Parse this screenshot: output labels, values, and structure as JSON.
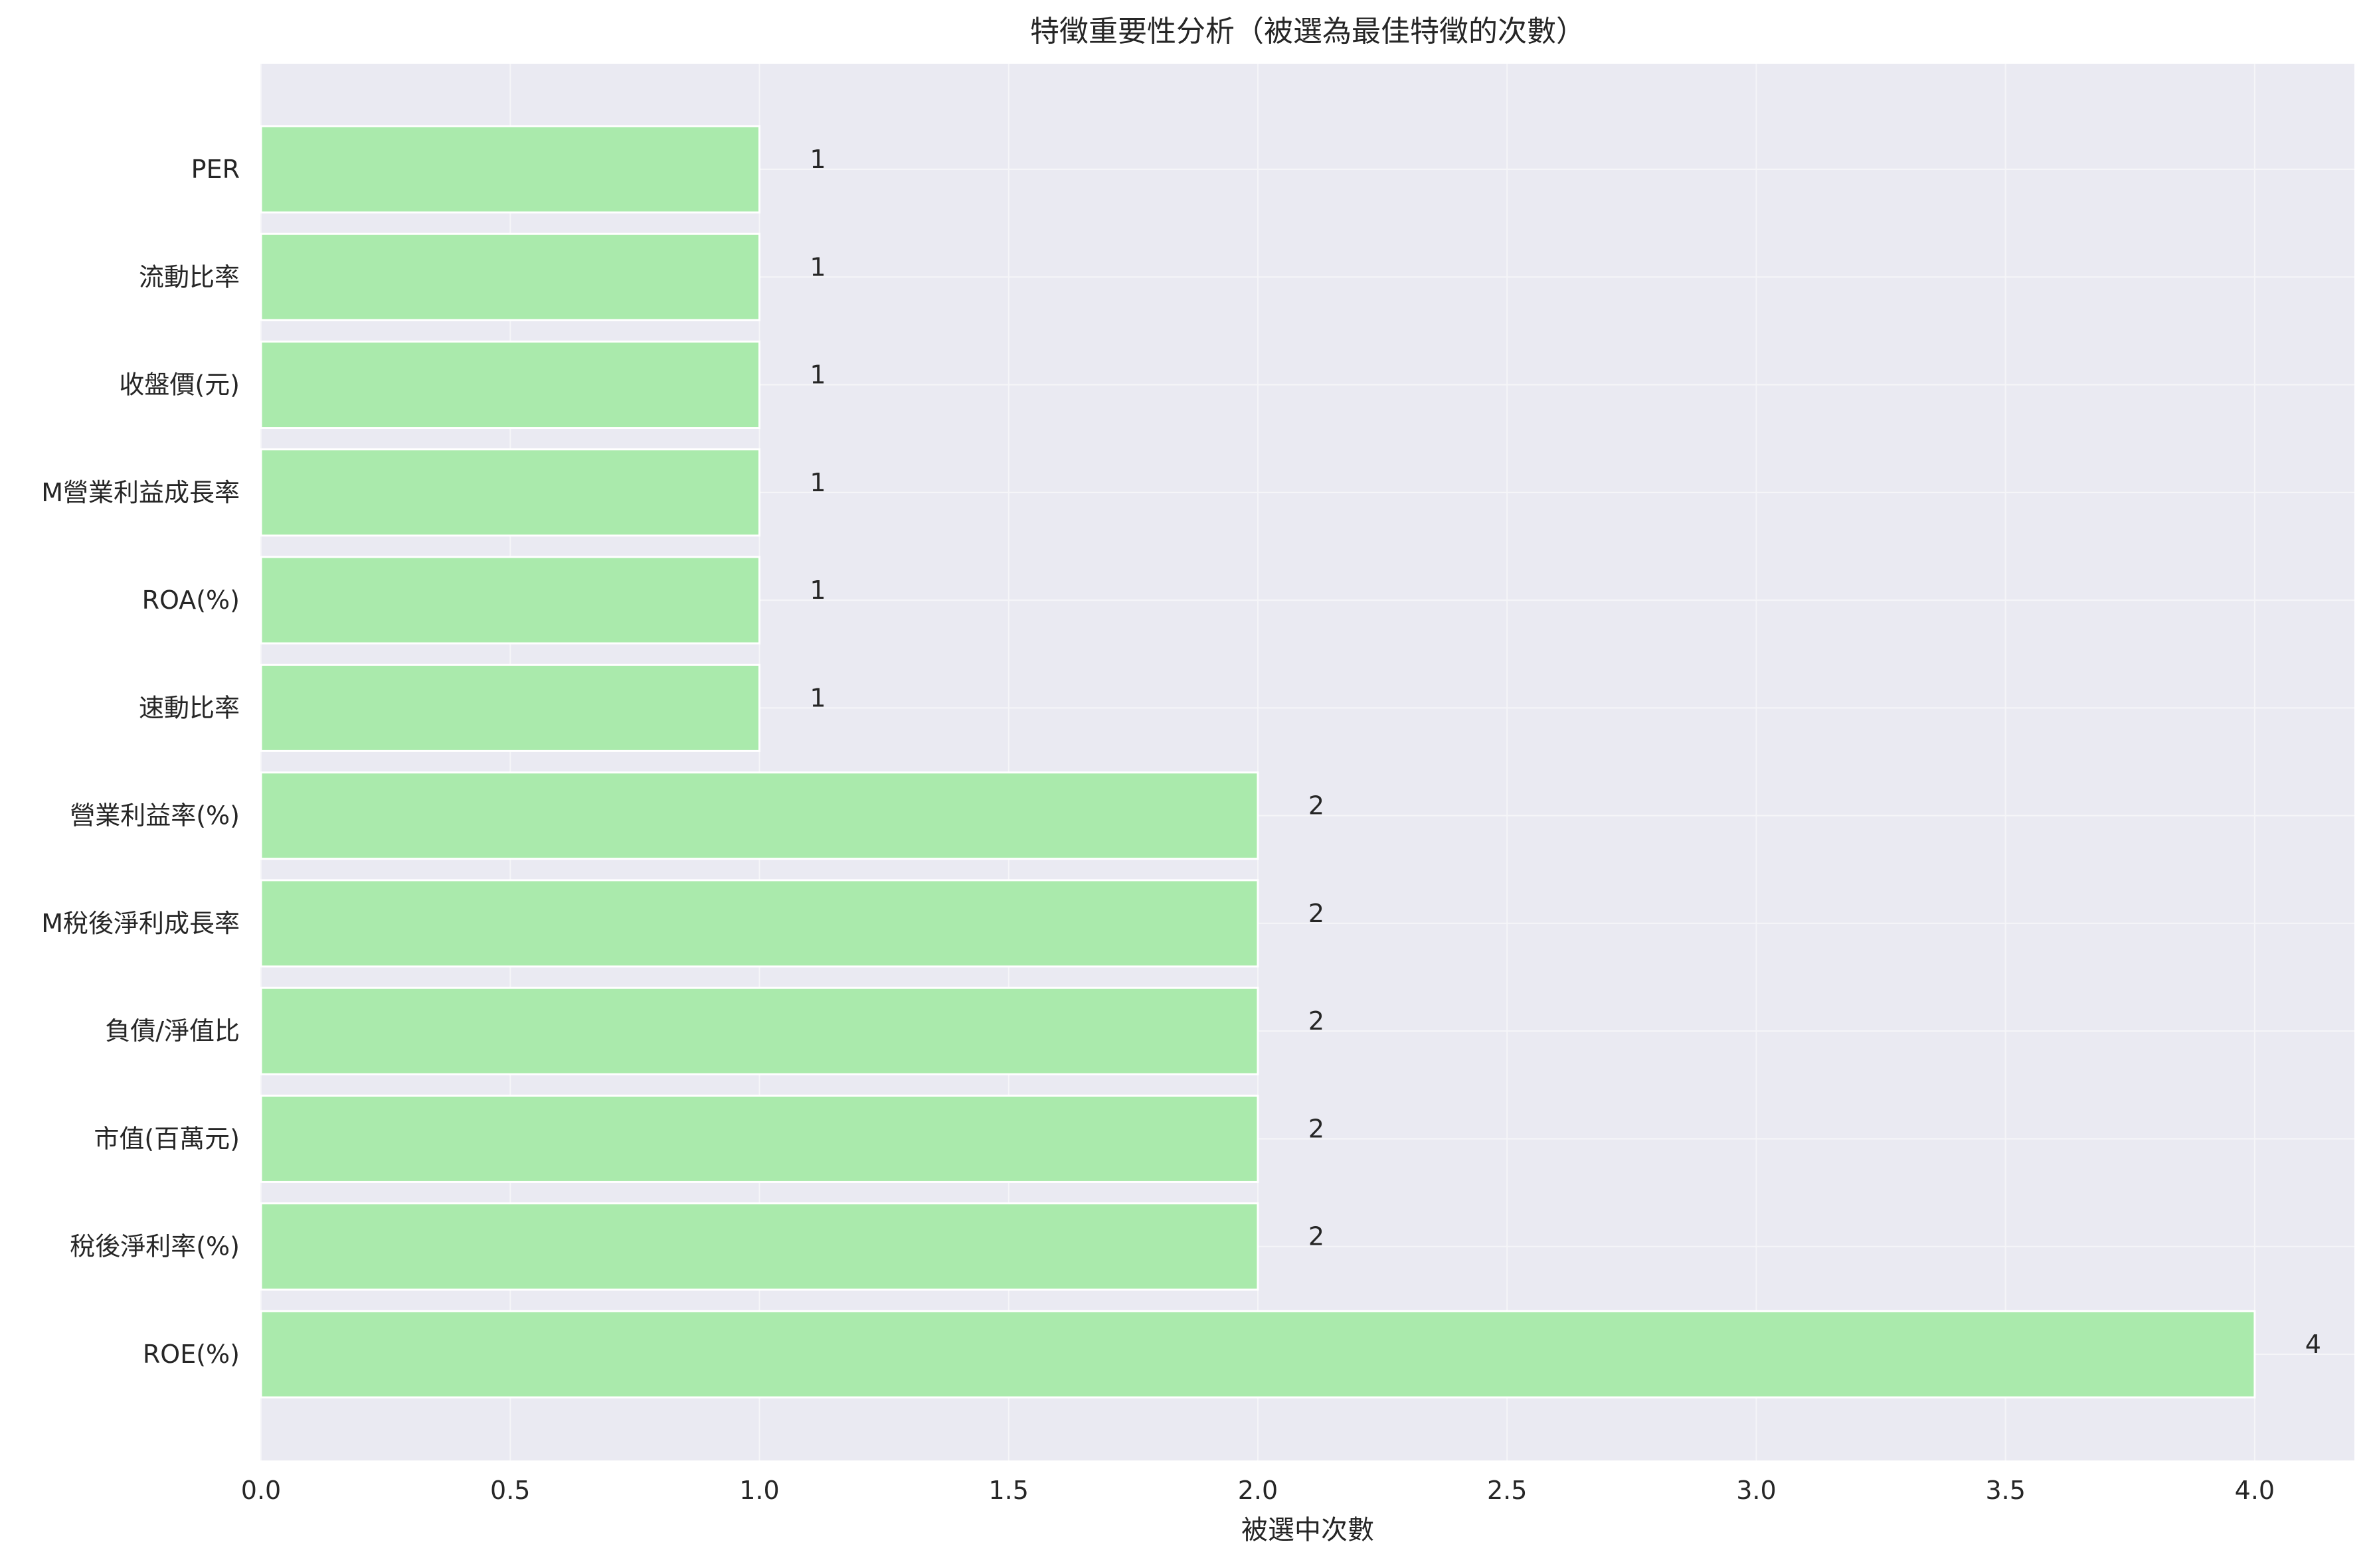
{
  "chart_data": {
    "type": "bar",
    "orientation": "horizontal",
    "title": "特徵重要性分析（被選為最佳特徵的次數）",
    "xlabel": "被選中次數",
    "ylabel": "",
    "categories": [
      "PER",
      "流動比率",
      "收盤價(元)",
      "M營業利益成長率",
      "ROA(%)",
      "速動比率",
      "營業利益率(%)",
      "M稅後淨利成長率",
      "負債/淨值比",
      "市值(百萬元)",
      "稅後淨利率(%)",
      "ROE(%)"
    ],
    "values": [
      1,
      1,
      1,
      1,
      1,
      1,
      2,
      2,
      2,
      2,
      2,
      4
    ],
    "xlim": [
      0,
      4.2
    ],
    "xticks": [
      "0.0",
      "0.5",
      "1.0",
      "1.5",
      "2.0",
      "2.5",
      "3.0",
      "3.5",
      "4.0"
    ],
    "grid": true,
    "colors": {
      "bar": "#aaeaac",
      "bar_edge": "#ffffff",
      "plot_background": "#eaeaf2",
      "grid": "#f5f5f8",
      "text": "#262626"
    }
  }
}
